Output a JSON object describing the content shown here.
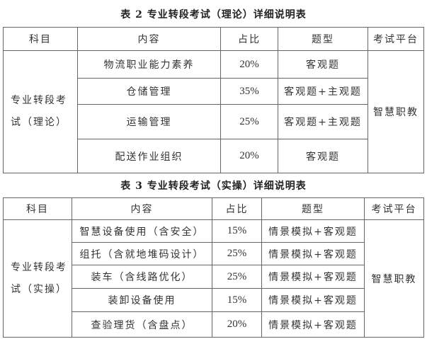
{
  "table2": {
    "title": "表 2  专业转段考试（理论）详细说明表",
    "headers": [
      "科目",
      "内容",
      "占比",
      "题型",
      "考试平台"
    ],
    "subject": "专业转段考试（理论）",
    "subject_line1": "专业转段考",
    "subject_line2": "试（理论）",
    "platform": "智慧职教",
    "rows": [
      {
        "content": "物流职业能力素养",
        "ratio": "20%",
        "type": "客观题"
      },
      {
        "content": "仓储管理",
        "ratio": "35%",
        "type": "客观题+主观题"
      },
      {
        "content": "运输管理",
        "ratio": "25%",
        "type": "客观题+主观题"
      },
      {
        "content": "配送作业组织",
        "ratio": "20%",
        "type": "客观题"
      }
    ]
  },
  "table3": {
    "title": "表 3  专业转段考试（实操）详细说明表",
    "headers": [
      "科目",
      "内容",
      "占比",
      "题型",
      "考试平台"
    ],
    "subject_line1": "专业转段考",
    "subject_line2": "试（实操）",
    "platform": "智慧职教",
    "rows": [
      {
        "content": "智慧设备使用（含安全）",
        "ratio": "15%",
        "type": "情景模拟+客观题"
      },
      {
        "content": "组托（含就地堆码设计）",
        "ratio": "25%",
        "type": "情景模拟+客观题"
      },
      {
        "content": "装车（含线路优化）",
        "ratio": "25%",
        "type": "情景模拟+客观题"
      },
      {
        "content": "装卸设备使用",
        "ratio": "15%",
        "type": "情景模拟+客观题"
      },
      {
        "content": "查验理货（含盘点）",
        "ratio": "20%",
        "type": "情景模拟+客观题"
      }
    ]
  }
}
